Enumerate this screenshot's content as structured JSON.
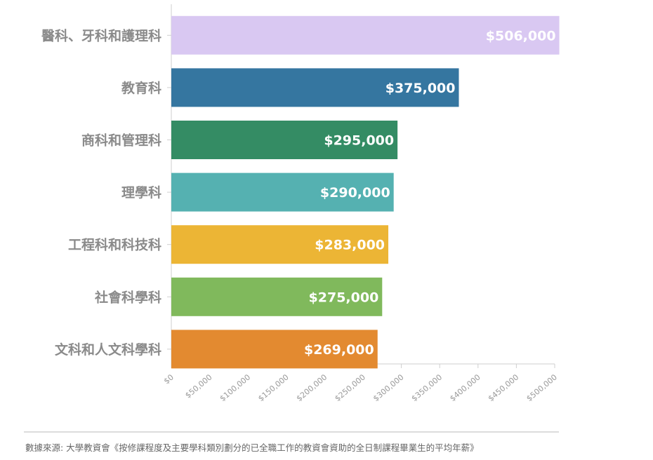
{
  "chart_data": {
    "type": "bar",
    "orientation": "horizontal",
    "categories": [
      "醫科、牙科和護理科",
      "教育科",
      "商科和管理科",
      "理學科",
      "工程科和科技科",
      "社會科學科",
      "文科和人文科學科"
    ],
    "values": [
      506000,
      375000,
      295000,
      290000,
      283000,
      275000,
      269000
    ],
    "value_labels": [
      "$506,000",
      "$375,000",
      "$295,000",
      "$290,000",
      "$283,000",
      "$275,000",
      "$269,000"
    ],
    "bar_colors": [
      "#d9c8f2",
      "#3576a0",
      "#348c64",
      "#55b1b1",
      "#ecb535",
      "#80b95c",
      "#e38a30"
    ],
    "label_colors": [
      "#d9c8f2",
      "#3576a0",
      "#348c64",
      "#55b1b1",
      "#ecb535",
      "#80b95c",
      "#e38a30"
    ],
    "x_ticks": [
      "$0",
      "$50,000",
      "$100,000",
      "$150,000",
      "$200,000",
      "$250,000",
      "$300,000",
      "$350,000",
      "$400,000",
      "$450,000",
      "$500,000"
    ],
    "xlim": [
      0,
      500000
    ],
    "grid": false,
    "legend": "none"
  },
  "source": "數據來源: 大學教資會《按修課程度及主要學科類別劃分的已全職工作的教資會資助的全日制課程畢業生的平均年薪》"
}
